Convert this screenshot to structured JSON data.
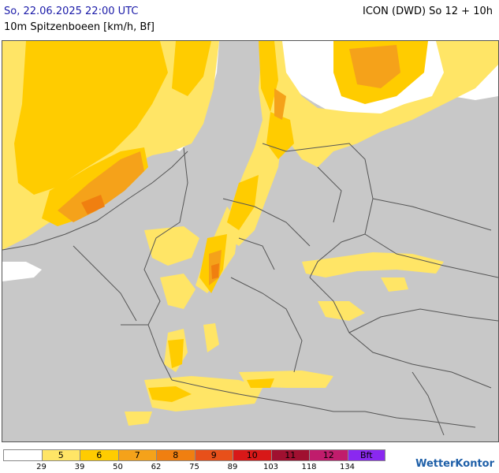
{
  "header": {
    "timestamp": "So, 22.06.2025 22:00 UTC",
    "model": "ICON (DWD) So 12 + 10h",
    "subtitle": "10m Spitzenboeen [km/h, Bf]"
  },
  "map": {
    "background_color": "#c8c8c8",
    "sea_color": "#ffffff",
    "border_color": "#555555"
  },
  "legend": {
    "classes": [
      {
        "bf": "",
        "color": "#ffffff"
      },
      {
        "bf": "5",
        "color": "#ffe566"
      },
      {
        "bf": "6",
        "color": "#ffcc00"
      },
      {
        "bf": "7",
        "color": "#f5a21a"
      },
      {
        "bf": "8",
        "color": "#f07f10"
      },
      {
        "bf": "9",
        "color": "#e8501a"
      },
      {
        "bf": "10",
        "color": "#d81818"
      },
      {
        "bf": "11",
        "color": "#a01030"
      },
      {
        "bf": "12",
        "color": "#c01c6c"
      },
      {
        "bf": "Bft",
        "color": "#8a28f0"
      }
    ],
    "thresholds": [
      "29",
      "39",
      "50",
      "62",
      "75",
      "89",
      "103",
      "118",
      "134"
    ]
  },
  "brand": {
    "name": "WetterKontor"
  }
}
